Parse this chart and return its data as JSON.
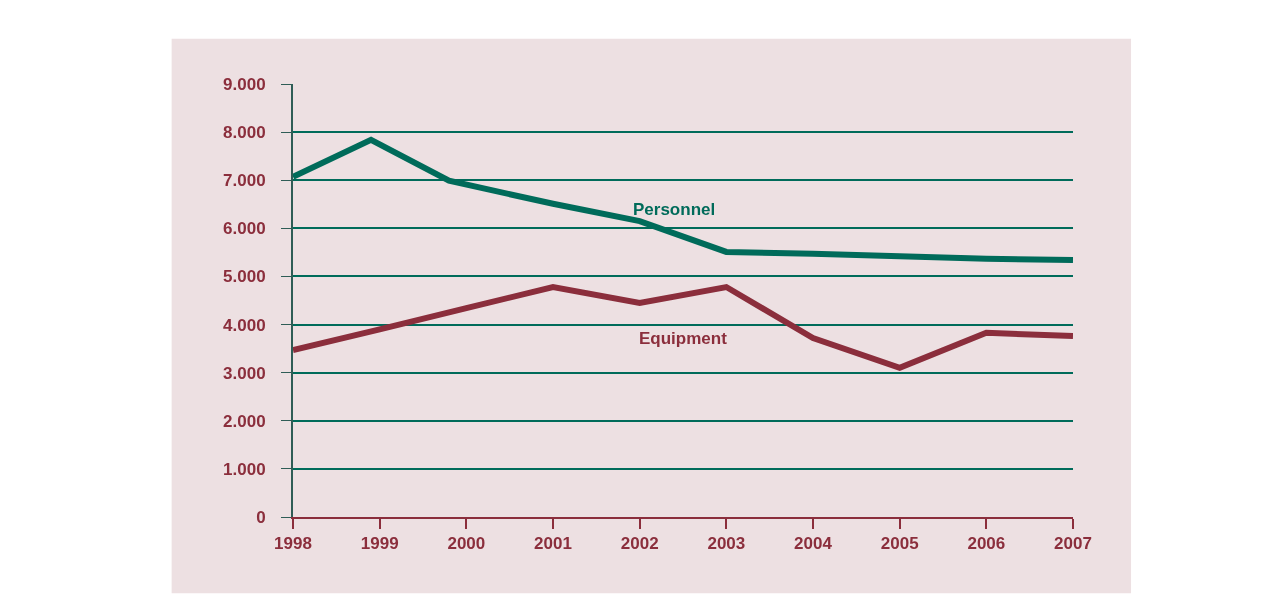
{
  "chart_data": {
    "type": "line",
    "x": [
      1998,
      1999,
      2000,
      2001,
      2002,
      2003,
      2004,
      2005,
      2006,
      2007
    ],
    "series": [
      {
        "name": "Personnel",
        "color": "#006b5a",
        "x": [
          1998,
          1998.9,
          1999.8,
          2001,
          2002,
          2003,
          2004,
          2005,
          2006,
          2007
        ],
        "values": [
          7070,
          7840,
          6990,
          6510,
          6150,
          5510,
          5470,
          5420,
          5370,
          5340
        ]
      },
      {
        "name": "Equipment",
        "color": "#8b2e3c",
        "values": [
          3470,
          3900,
          4340,
          4780,
          4450,
          4780,
          3720,
          3100,
          3830,
          3760
        ]
      }
    ],
    "xlim": [
      1998,
      2007
    ],
    "xticks": [
      1998,
      1999,
      2000,
      2001,
      2002,
      2003,
      2004,
      2005,
      2006,
      2007
    ],
    "ylim": [
      0,
      9000
    ],
    "yticks": [
      {
        "value": 0,
        "label": "0"
      },
      {
        "value": 1000,
        "label": "1.000"
      },
      {
        "value": 2000,
        "label": "2.000"
      },
      {
        "value": 3000,
        "label": "3.000"
      },
      {
        "value": 4000,
        "label": "4.000"
      },
      {
        "value": 5000,
        "label": "5.000"
      },
      {
        "value": 6000,
        "label": "6.000"
      },
      {
        "value": 7000,
        "label": "7.000"
      },
      {
        "value": 8000,
        "label": "8.000"
      },
      {
        "value": 9000,
        "label": "9.000"
      }
    ],
    "grid": "y",
    "legend": false,
    "marker": "none",
    "line_style": "solid"
  }
}
